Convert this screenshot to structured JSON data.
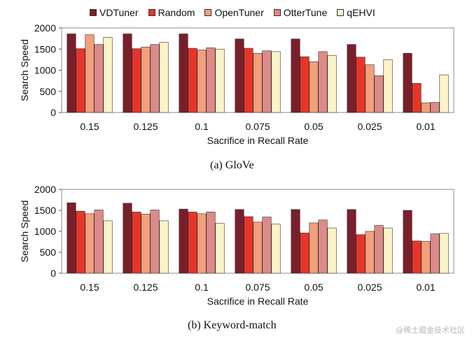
{
  "legend": [
    {
      "name": "VDTuner",
      "color": "#7a1f2a"
    },
    {
      "name": "Random",
      "color": "#e8352a"
    },
    {
      "name": "OpenTuner",
      "color": "#f2a07a"
    },
    {
      "name": "OtterTune",
      "color": "#dd8a88"
    },
    {
      "name": "qEHVI",
      "color": "#fdf3c8"
    }
  ],
  "captions": {
    "a": "(a)  GloVe",
    "b": "(b)  Keyword-match"
  },
  "watermark": "@稀土掘金技术社区",
  "chart_data": [
    {
      "type": "bar",
      "ylabel": "Search Speed",
      "xlabel": "Sacrifice in Recall Rate",
      "ylim": [
        0,
        2000
      ],
      "yticks": [
        "0",
        "500",
        "1000",
        "1500",
        "2000"
      ],
      "categories": [
        "0.15",
        "0.125",
        "0.1",
        "0.075",
        "0.05",
        "0.025",
        "0.01"
      ],
      "series": [
        {
          "name": "VDTuner",
          "values": [
            1860,
            1860,
            1860,
            1740,
            1740,
            1610,
            1400
          ]
        },
        {
          "name": "Random",
          "values": [
            1510,
            1510,
            1520,
            1520,
            1320,
            1310,
            690
          ]
        },
        {
          "name": "OpenTuner",
          "values": [
            1840,
            1550,
            1480,
            1400,
            1200,
            1130,
            230
          ]
        },
        {
          "name": "OtterTune",
          "values": [
            1610,
            1610,
            1530,
            1460,
            1440,
            870,
            240
          ]
        },
        {
          "name": "qEHVI",
          "values": [
            1780,
            1660,
            1500,
            1440,
            1350,
            1250,
            890
          ]
        }
      ]
    },
    {
      "type": "bar",
      "ylabel": "Search Speed",
      "xlabel": "Sacrifice in Recall Rate",
      "ylim": [
        0,
        2000
      ],
      "yticks": [
        "0",
        "500",
        "1000",
        "1500",
        "2000"
      ],
      "categories": [
        "0.15",
        "0.125",
        "0.1",
        "0.075",
        "0.05",
        "0.025",
        "0.01"
      ],
      "series": [
        {
          "name": "VDTuner",
          "values": [
            1680,
            1670,
            1530,
            1520,
            1520,
            1520,
            1500
          ]
        },
        {
          "name": "Random",
          "values": [
            1480,
            1460,
            1460,
            1350,
            960,
            920,
            770
          ]
        },
        {
          "name": "OpenTuner",
          "values": [
            1420,
            1410,
            1420,
            1220,
            1200,
            1000,
            760
          ]
        },
        {
          "name": "OtterTune",
          "values": [
            1510,
            1510,
            1460,
            1340,
            1270,
            1140,
            940
          ]
        },
        {
          "name": "qEHVI",
          "values": [
            1250,
            1250,
            1190,
            1170,
            1080,
            1080,
            950
          ]
        }
      ]
    }
  ]
}
